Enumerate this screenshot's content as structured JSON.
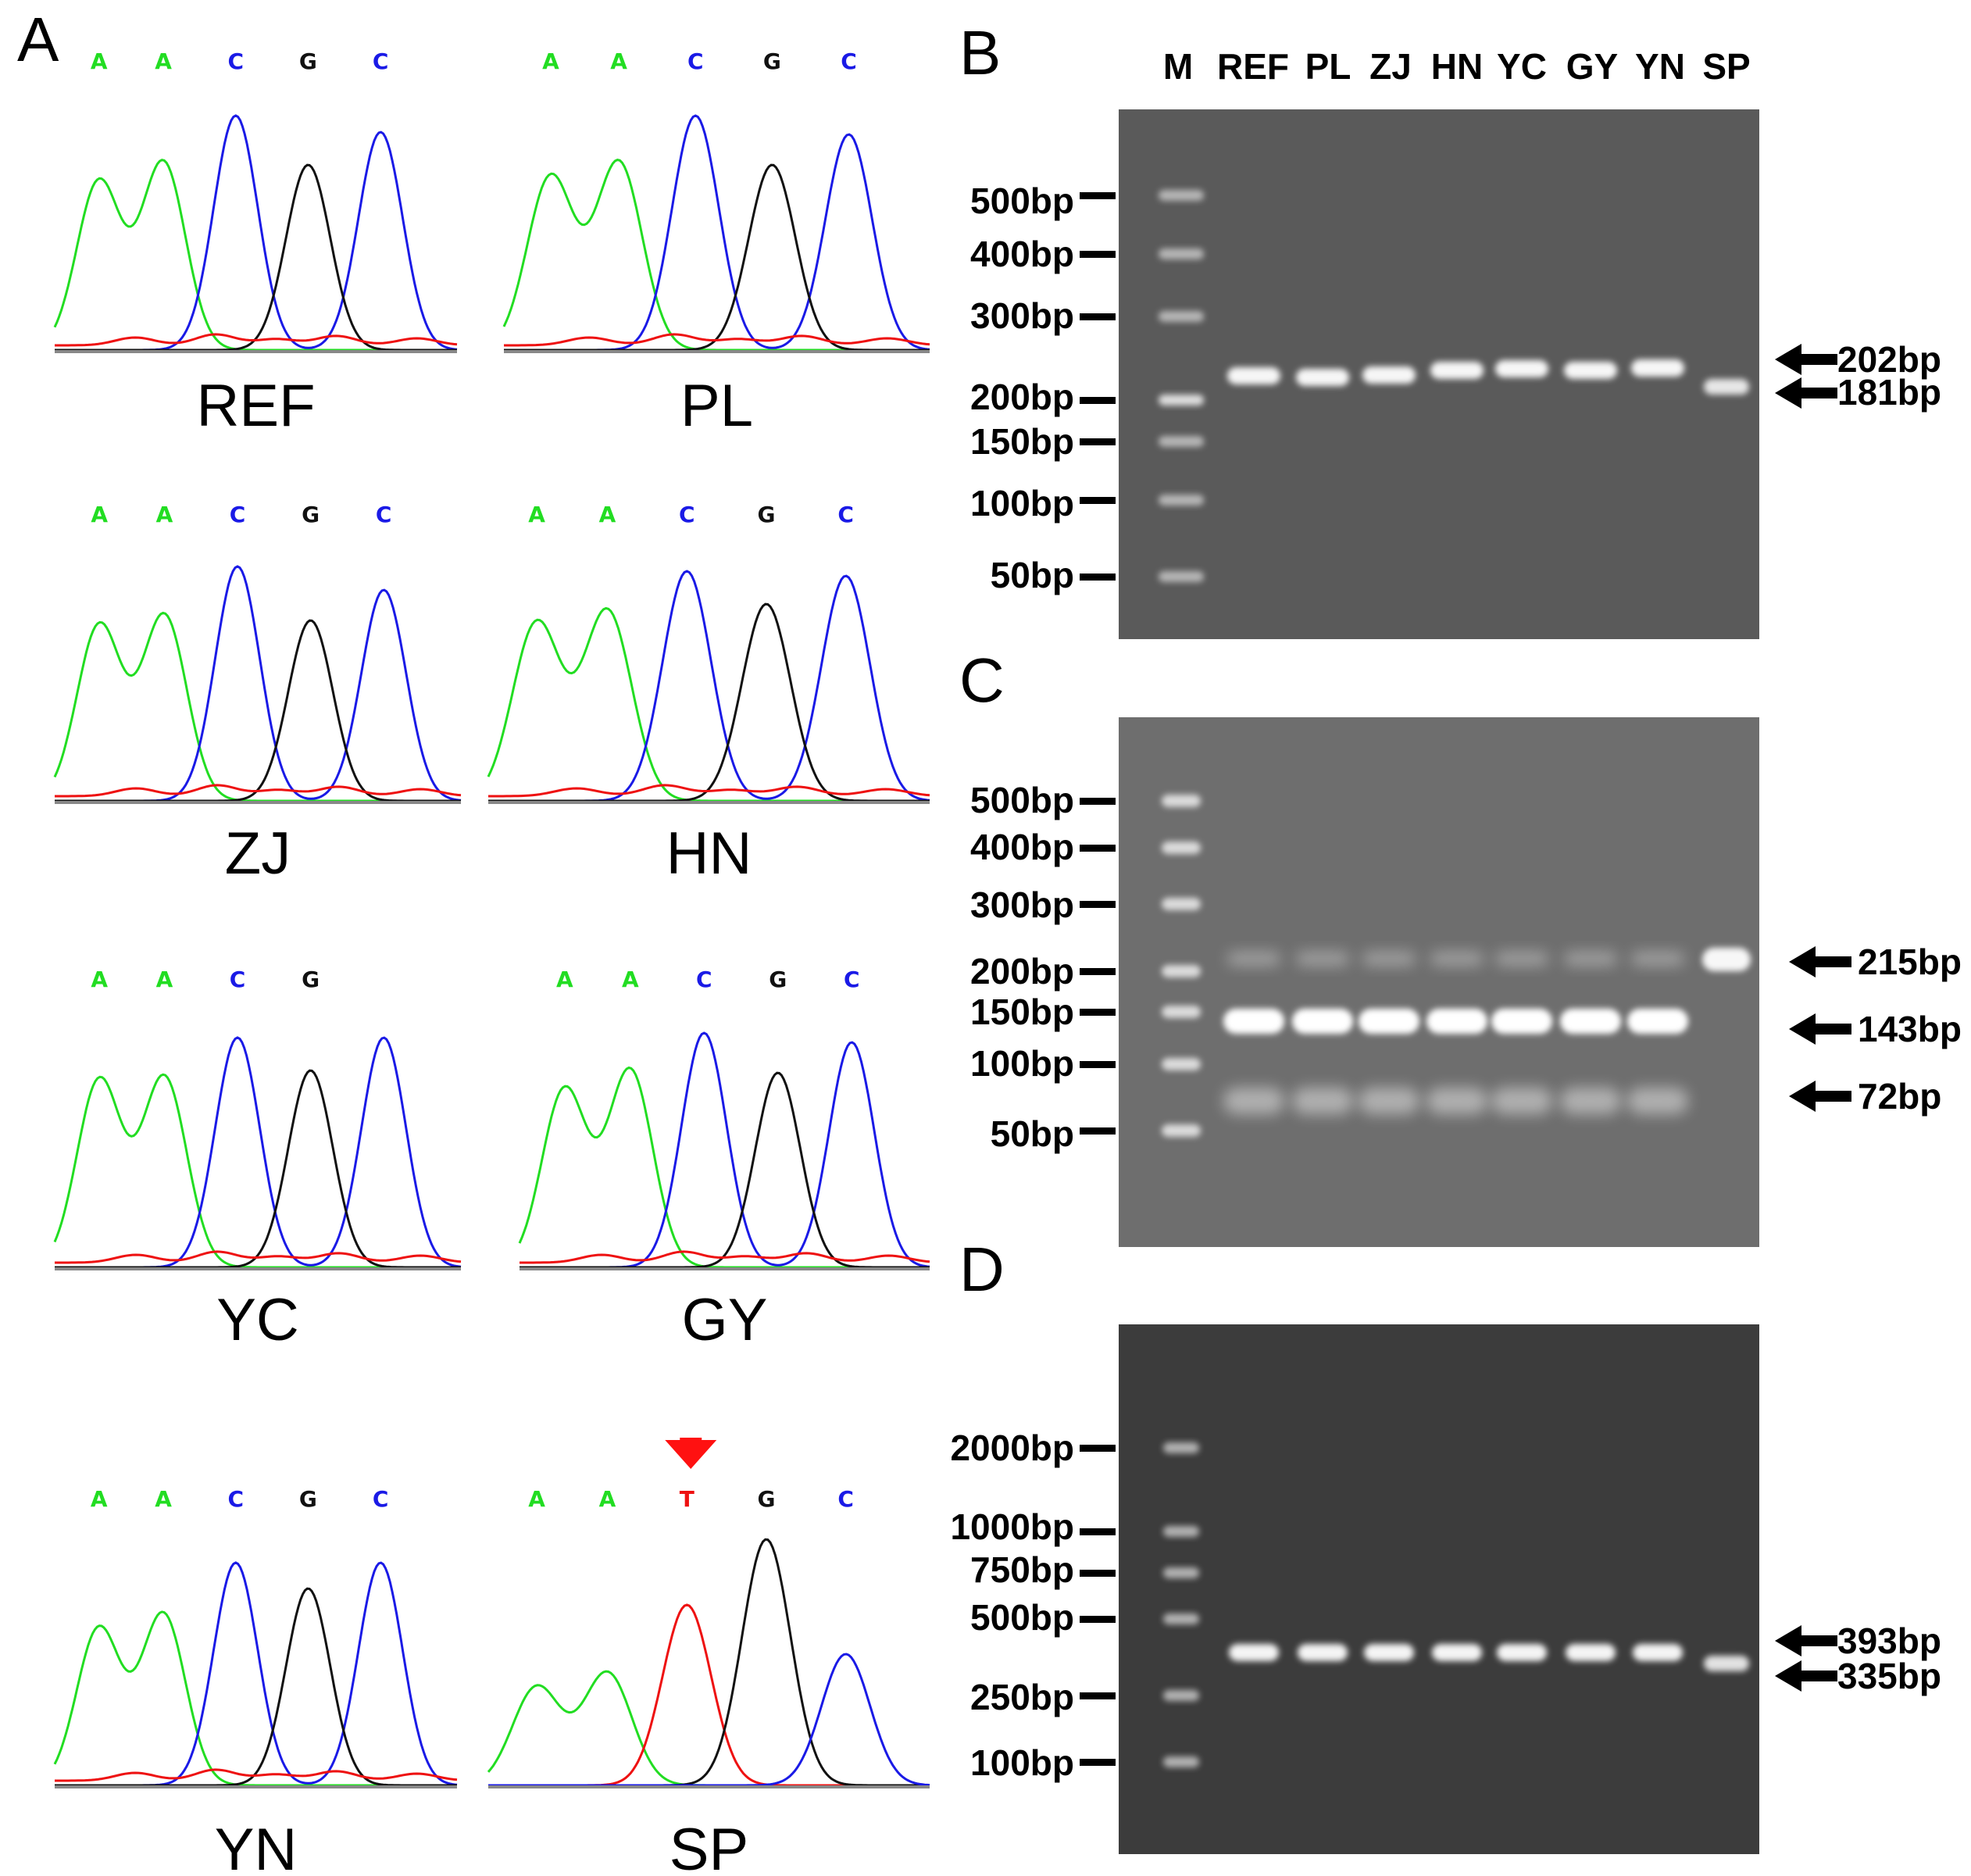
{
  "panel_a": {
    "letter": "A",
    "colors": {
      "A": "#22dd22",
      "C": "#1a1ae6",
      "G": "#111111",
      "T": "#ee1111",
      "baseline": "#888888"
    },
    "samples": [
      {
        "label": "REF",
        "bases": [
          "A",
          "A",
          "C",
          "G",
          "C"
        ]
      },
      {
        "label": "PL",
        "bases": [
          "A",
          "A",
          "C",
          "G",
          "C"
        ]
      },
      {
        "label": "ZJ",
        "bases": [
          "A",
          "A",
          "C",
          "G",
          "C"
        ]
      },
      {
        "label": "HN",
        "bases": [
          "A",
          "A",
          "C",
          "G",
          "C"
        ]
      },
      {
        "label": "YC",
        "bases": [
          "A",
          "A",
          "C",
          "G",
          ""
        ]
      },
      {
        "label": "GY",
        "bases": [
          "A",
          "A",
          "C",
          "G",
          "C"
        ]
      },
      {
        "label": "YN",
        "bases": [
          "A",
          "A",
          "C",
          "G",
          "C"
        ]
      },
      {
        "label": "SP",
        "bases": [
          "A",
          "A",
          "T",
          "G",
          "C"
        ],
        "mutation_index": 2
      }
    ],
    "mutation_arrow_color": "#ff1111"
  },
  "gels": {
    "lanes": [
      "M",
      "REF",
      "PL",
      "ZJ",
      "HN",
      "YC",
      "GY",
      "YN",
      "SP"
    ],
    "panels": [
      {
        "letter": "B",
        "ladder": [
          "500bp",
          "400bp",
          "300bp",
          "200bp",
          "150bp",
          "100bp",
          "50bp"
        ],
        "bands": [
          "202bp",
          "181bp"
        ]
      },
      {
        "letter": "C",
        "ladder": [
          "500bp",
          "400bp",
          "300bp",
          "200bp",
          "150bp",
          "100bp",
          "50bp"
        ],
        "bands": [
          "215bp",
          "143bp",
          "72bp"
        ]
      },
      {
        "letter": "D",
        "ladder": [
          "2000bp",
          "1000bp",
          "750bp",
          "500bp",
          "250bp",
          "100bp"
        ],
        "bands": [
          "393bp",
          "335bp"
        ]
      }
    ]
  }
}
